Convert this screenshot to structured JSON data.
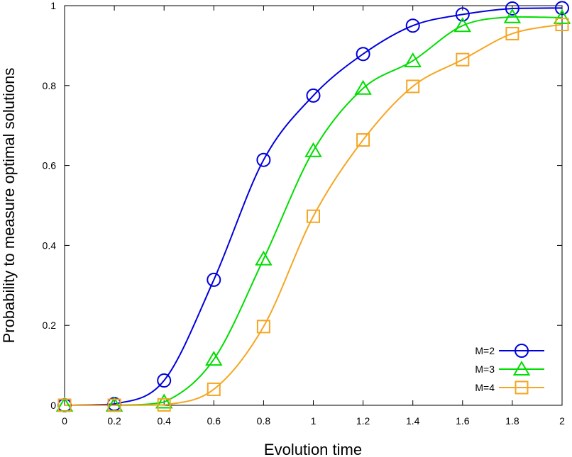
{
  "chart_data": {
    "type": "line",
    "xlabel": "Evolution time",
    "ylabel": "Probability to measure optimal solutions",
    "xlim": [
      0,
      2
    ],
    "ylim": [
      0,
      1
    ],
    "x_ticks": [
      "0",
      "0.2",
      "0.4",
      "0.6",
      "0.8",
      "1",
      "1.2",
      "1.4",
      "1.6",
      "1.8",
      "2"
    ],
    "y_ticks": [
      "0",
      "0.2",
      "0.4",
      "0.6",
      "0.8",
      "1"
    ],
    "grid": false,
    "legend_position": "bottom-right",
    "x": [
      0,
      0.2,
      0.4,
      0.6,
      0.8,
      1.0,
      1.2,
      1.4,
      1.6,
      1.8,
      2.0
    ],
    "series": [
      {
        "name": "M=2",
        "color": "#0000dd",
        "marker": "circle",
        "values": [
          0.0,
          0.003,
          0.062,
          0.314,
          0.614,
          0.775,
          0.879,
          0.95,
          0.978,
          0.993,
          0.994
        ]
      },
      {
        "name": "M=3",
        "color": "#00dd00",
        "marker": "triangle",
        "values": [
          0.0,
          0.0,
          0.008,
          0.115,
          0.366,
          0.637,
          0.793,
          0.862,
          0.95,
          0.972,
          0.97
        ]
      },
      {
        "name": "M=4",
        "color": "#f5a623",
        "marker": "square",
        "values": [
          0.0,
          0.0,
          0.001,
          0.04,
          0.197,
          0.473,
          0.664,
          0.798,
          0.865,
          0.93,
          0.953
        ]
      }
    ]
  }
}
